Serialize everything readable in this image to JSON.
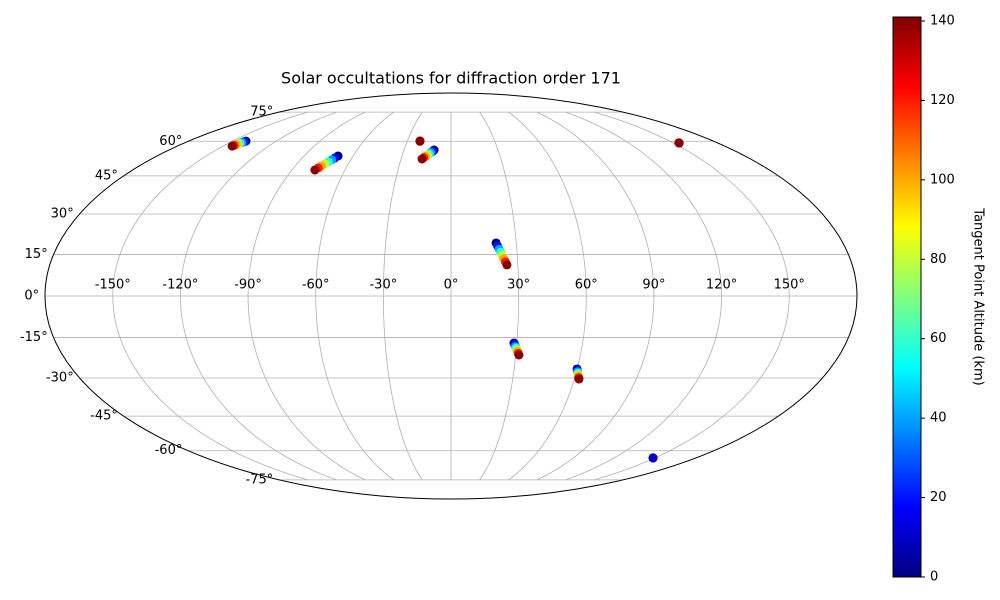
{
  "chart_data": {
    "type": "scatter",
    "projection": "mollweide",
    "title": "Solar occultations for diffraction order 171",
    "grid": true,
    "xticks": [
      {
        "value": -150,
        "label": "-150°"
      },
      {
        "value": -120,
        "label": "-120°"
      },
      {
        "value": -90,
        "label": "-90°"
      },
      {
        "value": -60,
        "label": "-60°"
      },
      {
        "value": -30,
        "label": "-30°"
      },
      {
        "value": 0,
        "label": "0°"
      },
      {
        "value": 30,
        "label": "30°"
      },
      {
        "value": 60,
        "label": "60°"
      },
      {
        "value": 90,
        "label": "90°"
      },
      {
        "value": 120,
        "label": "120°"
      },
      {
        "value": 150,
        "label": "150°"
      }
    ],
    "yticks": [
      {
        "value": -75,
        "label": "-75°"
      },
      {
        "value": -60,
        "label": "-60°"
      },
      {
        "value": -45,
        "label": "-45°"
      },
      {
        "value": -30,
        "label": "-30°"
      },
      {
        "value": -15,
        "label": "-15°"
      },
      {
        "value": 0,
        "label": "0°"
      },
      {
        "value": 15,
        "label": "15°"
      },
      {
        "value": 30,
        "label": "30°"
      },
      {
        "value": 45,
        "label": "45°"
      },
      {
        "value": 60,
        "label": "60°"
      },
      {
        "value": 75,
        "label": "75°"
      }
    ],
    "x": [
      -140.8,
      -141.3,
      -141.7,
      -142.2,
      -142.6,
      -143.1,
      -143.5,
      -144.0,
      -69.2,
      -70.3,
      -71.4,
      -72.5,
      -73.7,
      -74.8,
      -75.9,
      -77.0,
      -21.3,
      -21.3,
      -21.3,
      -10.8,
      -11.7,
      -12.7,
      -13.6,
      -14.6,
      -15.5,
      -16.5,
      -17.4,
      154.0,
      154.0,
      154.0,
      20.7,
      21.3,
      22.0,
      22.6,
      23.2,
      23.8,
      24.5,
      25.1,
      28.7,
      29.1,
      29.5,
      29.9,
      30.3,
      30.7,
      31.1,
      31.5,
      59.9,
      60.2,
      60.6,
      60.9,
      61.2,
      61.5,
      61.9,
      62.2,
      148.6,
      148.6,
      148.6
    ],
    "y": [
      60.1,
      59.8,
      59.4,
      59.1,
      58.8,
      58.5,
      58.1,
      57.8,
      53.4,
      52.5,
      51.7,
      50.8,
      50.0,
      49.1,
      48.3,
      47.4,
      60.2,
      60.1,
      60.0,
      56.0,
      55.4,
      54.9,
      54.3,
      53.8,
      53.2,
      52.7,
      52.1,
      59.3,
      59.2,
      59.2,
      19.2,
      18.1,
      16.9,
      15.8,
      14.6,
      13.5,
      12.3,
      11.2,
      -17.0,
      -17.6,
      -18.3,
      -18.9,
      -19.5,
      -20.1,
      -20.8,
      -21.4,
      -26.6,
      -27.1,
      -27.7,
      -28.2,
      -28.8,
      -29.3,
      -29.9,
      -30.4,
      -63.4,
      -63.4,
      -63.4
    ],
    "values": [
      0,
      20,
      40,
      60,
      80,
      100,
      120,
      140,
      0,
      20,
      40,
      60,
      80,
      100,
      120,
      140,
      120,
      130,
      140,
      0,
      20,
      40,
      60,
      80,
      100,
      120,
      140,
      120,
      135,
      140,
      0,
      20,
      40,
      60,
      80,
      100,
      120,
      140,
      0,
      20,
      40,
      60,
      80,
      100,
      120,
      140,
      0,
      20,
      40,
      60,
      80,
      100,
      120,
      140,
      0,
      5,
      10
    ],
    "colormap": "jet",
    "colorbar": {
      "label": "Tangent Point Altitude (km)",
      "lim": [
        0,
        141
      ],
      "ticks": [
        0,
        20,
        40,
        60,
        80,
        100,
        120,
        140
      ]
    }
  }
}
